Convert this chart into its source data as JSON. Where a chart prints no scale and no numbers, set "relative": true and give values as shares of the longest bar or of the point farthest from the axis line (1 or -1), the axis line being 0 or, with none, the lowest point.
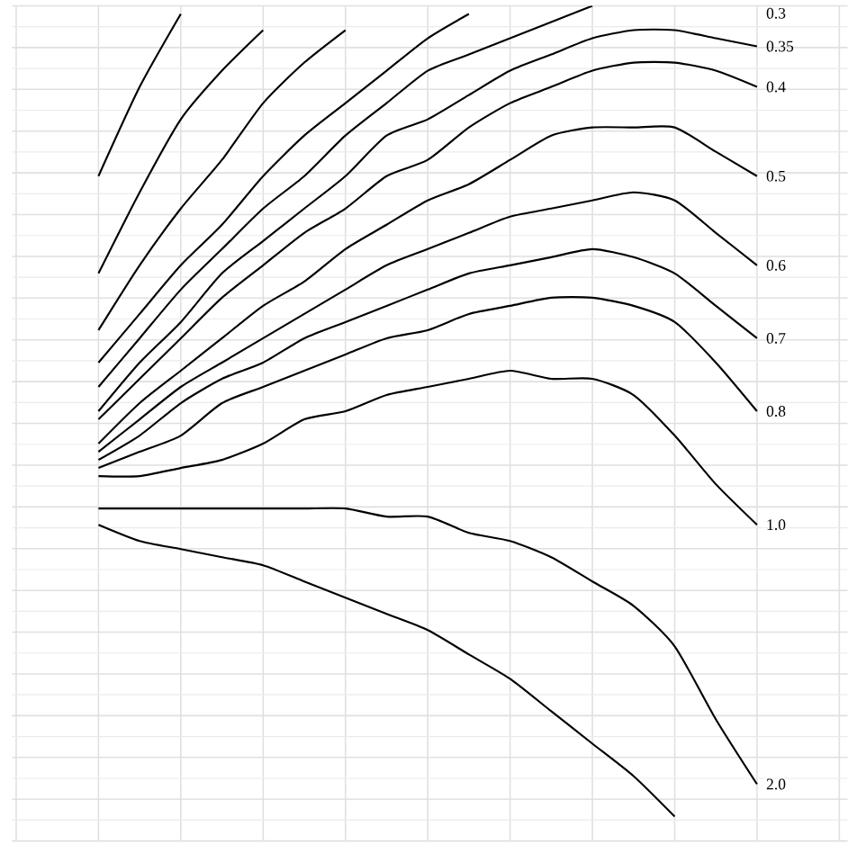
{
  "chart_data": {
    "type": "line",
    "relative": true,
    "grid": true,
    "line_style": "solid",
    "categories": [
      null,
      null,
      null,
      null,
      null,
      null,
      null,
      null,
      null,
      null,
      null,
      null,
      null,
      null,
      null,
      null,
      null
    ],
    "series": [
      {
        "color": "#000000",
        "values": [
          0.79,
          0.9,
          0.99,
          null,
          null,
          null,
          null,
          null,
          null,
          null,
          null,
          null,
          null,
          null,
          null,
          null,
          null
        ]
      },
      {
        "color": "#000000",
        "values": [
          0.67,
          0.77,
          0.86,
          0.92,
          0.97,
          null,
          null,
          null,
          null,
          null,
          null,
          null,
          null,
          null,
          null,
          null,
          null
        ]
      },
      {
        "color": "#000000",
        "values": [
          0.6,
          0.68,
          0.75,
          0.81,
          0.88,
          0.93,
          0.97,
          null,
          null,
          null,
          null,
          null,
          null,
          null,
          null,
          null,
          null
        ]
      },
      {
        "color": "#000000",
        "values": [
          0.56,
          0.62,
          0.68,
          0.73,
          0.79,
          0.84,
          0.88,
          0.92,
          0.96,
          0.99,
          null,
          null,
          null,
          null,
          null,
          null,
          null
        ]
      },
      {
        "name": "0.3",
        "color": "#000000",
        "values": [
          0.53,
          0.59,
          0.65,
          0.7,
          0.75,
          0.79,
          0.84,
          0.88,
          0.92,
          0.94,
          0.96,
          0.98,
          1.0,
          null,
          null,
          null,
          null
        ]
      },
      {
        "name": "0.35",
        "color": "#000000",
        "values": [
          0.5,
          0.56,
          0.61,
          0.67,
          0.71,
          0.75,
          0.79,
          0.84,
          0.86,
          0.89,
          0.92,
          0.94,
          0.96,
          0.97,
          0.97,
          0.96,
          0.95
        ]
      },
      {
        "name": "0.4",
        "color": "#000000",
        "values": [
          0.49,
          0.54,
          0.59,
          0.64,
          0.68,
          0.72,
          0.75,
          0.79,
          0.81,
          0.85,
          0.88,
          0.9,
          0.92,
          0.93,
          0.93,
          0.92,
          0.9
        ]
      },
      {
        "name": "0.5",
        "color": "#000000",
        "values": [
          0.46,
          0.51,
          0.55,
          0.59,
          0.63,
          0.66,
          0.7,
          0.73,
          0.76,
          0.78,
          0.81,
          0.84,
          0.85,
          0.85,
          0.85,
          0.82,
          0.79
        ]
      },
      {
        "name": "0.6",
        "color": "#000000",
        "values": [
          0.45,
          0.49,
          0.53,
          0.56,
          0.59,
          0.62,
          0.65,
          0.68,
          0.7,
          0.72,
          0.74,
          0.75,
          0.76,
          0.77,
          0.76,
          0.72,
          0.68
        ]
      },
      {
        "name": "0.7",
        "color": "#000000",
        "values": [
          0.44,
          0.47,
          0.51,
          0.54,
          0.56,
          0.59,
          0.61,
          0.63,
          0.65,
          0.67,
          0.68,
          0.69,
          0.7,
          0.69,
          0.67,
          0.63,
          0.59
        ]
      },
      {
        "name": "0.8",
        "color": "#000000",
        "values": [
          0.43,
          0.45,
          0.47,
          0.51,
          0.53,
          0.55,
          0.57,
          0.59,
          0.6,
          0.62,
          0.63,
          0.64,
          0.64,
          0.63,
          0.61,
          0.56,
          0.5
        ]
      },
      {
        "name": "1.0",
        "color": "#000000",
        "values": [
          0.42,
          0.42,
          0.43,
          0.44,
          0.46,
          0.49,
          0.5,
          0.52,
          0.53,
          0.54,
          0.55,
          0.54,
          0.54,
          0.52,
          0.47,
          0.41,
          0.36
        ]
      },
      {
        "name": "2.0",
        "color": "#000000",
        "values": [
          0.38,
          0.38,
          0.38,
          0.38,
          0.38,
          0.38,
          0.38,
          0.37,
          0.37,
          0.35,
          0.34,
          0.32,
          0.29,
          0.26,
          0.21,
          0.12,
          0.04
        ]
      },
      {
        "color": "#000000",
        "values": [
          0.36,
          0.34,
          0.33,
          0.32,
          0.31,
          0.29,
          0.27,
          0.25,
          0.23,
          0.2,
          0.17,
          0.13,
          0.09,
          0.05,
          0.0,
          null,
          null
        ]
      }
    ]
  }
}
